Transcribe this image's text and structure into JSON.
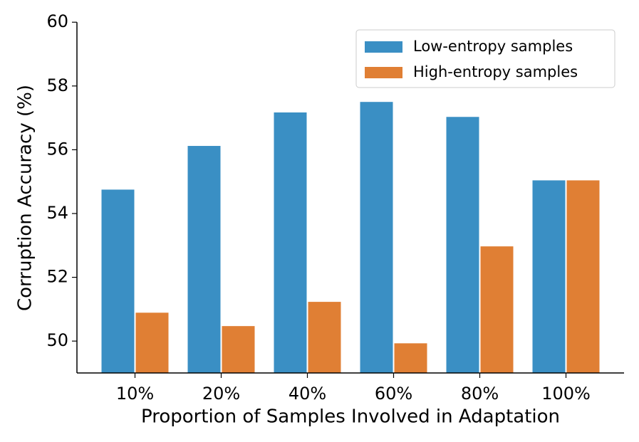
{
  "chart_data": {
    "type": "bar",
    "xlabel": "Proportion of Samples Involved in Adaptation",
    "ylabel": "Corruption Accuracy (%)",
    "categories": [
      "10%",
      "20%",
      "40%",
      "60%",
      "80%",
      "100%"
    ],
    "series": [
      {
        "name": "Low-entropy samples",
        "color": "#3a8fc4",
        "values": [
          54.75,
          56.12,
          57.17,
          57.5,
          57.03,
          55.04
        ]
      },
      {
        "name": "High-entropy samples",
        "color": "#e07f34",
        "values": [
          50.89,
          50.47,
          51.23,
          49.93,
          52.97,
          55.04
        ]
      }
    ],
    "ylim": [
      49,
      60
    ],
    "yticks": [
      50,
      52,
      54,
      56,
      58,
      60
    ],
    "legend": "upper right"
  }
}
